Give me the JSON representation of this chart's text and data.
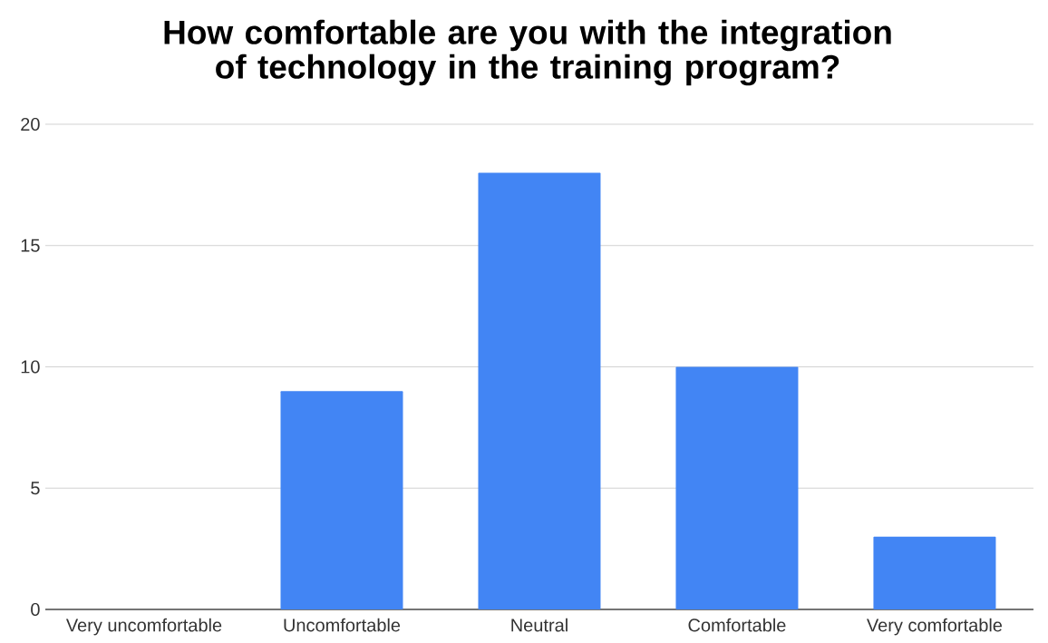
{
  "chart_data": {
    "type": "bar",
    "title": "How comfortable are you with the integration of technology in the training program?",
    "categories": [
      "Very uncomfortable",
      "Uncomfortable",
      "Neutral",
      "Comfortable",
      "Very comfortable"
    ],
    "values": [
      0,
      9,
      18,
      10,
      3
    ],
    "color": "#4285f4",
    "ylim": [
      0,
      20
    ],
    "yticks": [
      0,
      5,
      10,
      15,
      20
    ],
    "grid": "y"
  }
}
